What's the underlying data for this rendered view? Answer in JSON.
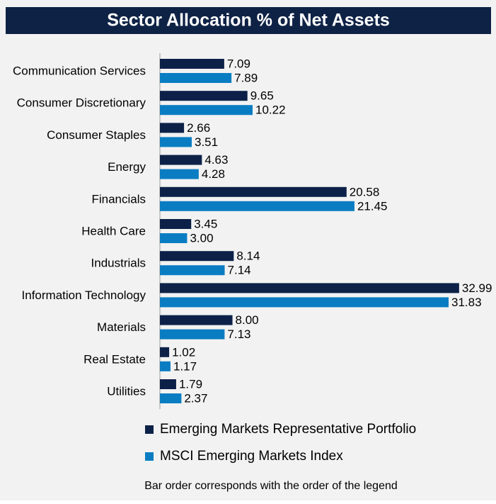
{
  "chart_data": {
    "type": "bar",
    "orientation": "horizontal",
    "title": "Sector Allocation % of Net Assets",
    "categories": [
      "Communication Services",
      "Consumer Discretionary",
      "Consumer Staples",
      "Energy",
      "Financials",
      "Health Care",
      "Industrials",
      "Information Technology",
      "Materials",
      "Real Estate",
      "Utilities"
    ],
    "series": [
      {
        "name": "Emerging Markets Representative Portfolio",
        "color": "#0d2148",
        "values": [
          7.09,
          9.65,
          2.66,
          4.63,
          20.58,
          3.45,
          8.14,
          32.99,
          8.0,
          1.02,
          1.79
        ],
        "value_labels": [
          "7.09",
          "9.65",
          "2.66",
          "4.63",
          "20.58",
          "3.45",
          "8.14",
          "32.99",
          "8.00",
          "1.02",
          "1.79"
        ]
      },
      {
        "name": "MSCI Emerging Markets Index",
        "color": "#0a7dc2",
        "values": [
          7.89,
          10.22,
          3.51,
          4.28,
          21.45,
          3.0,
          7.14,
          31.83,
          7.13,
          1.17,
          2.37
        ],
        "value_labels": [
          "7.89",
          "10.22",
          "3.51",
          "4.28",
          "21.45",
          "3.00",
          "7.14",
          "31.83",
          "7.13",
          "1.17",
          "2.37"
        ]
      }
    ],
    "xlim": [
      0,
      33
    ],
    "note": "Bar order corresponds with the order of the legend"
  }
}
